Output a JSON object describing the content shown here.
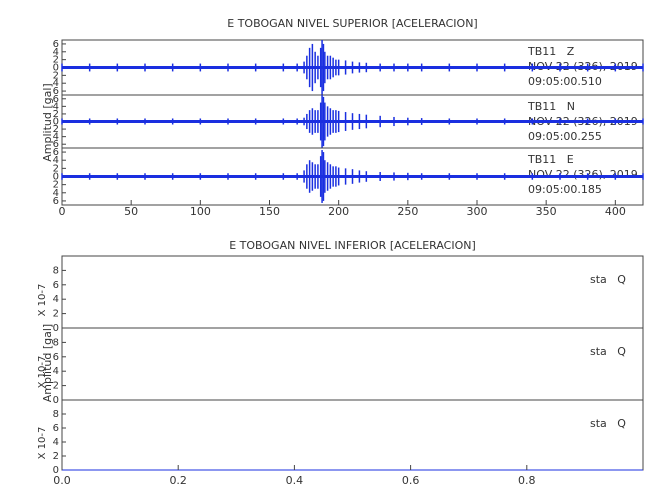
{
  "chart_data": [
    {
      "type": "line",
      "title": "E TOBOGAN NIVEL SUPERIOR [ACELERACION]",
      "ylabel": "Amplitud [gal]",
      "xlim": [
        0,
        420
      ],
      "xticks": [
        0,
        50,
        100,
        150,
        200,
        250,
        300,
        350,
        400
      ],
      "ylim": [
        -7,
        7
      ],
      "yticks": [
        {
          "value": -6,
          "label": "6"
        },
        {
          "value": -4,
          "label": "4"
        },
        {
          "value": -2,
          "label": "2"
        },
        0,
        2,
        4,
        6
      ],
      "x": [
        0,
        20,
        40,
        60,
        80,
        100,
        120,
        140,
        160,
        170,
        175,
        177,
        179,
        181,
        183,
        185,
        187,
        188,
        189,
        190,
        192,
        194,
        196,
        198,
        200,
        205,
        210,
        215,
        220,
        230,
        240,
        250,
        260,
        280,
        300,
        320,
        340,
        360,
        380,
        400,
        420
      ],
      "series": [
        {
          "name": "TB11   Z",
          "date": "NOV 22 (326), 2019",
          "time": "09:05:00.510",
          "color": "#1a2fe0",
          "values": [
            1,
            1,
            1,
            1,
            1,
            1,
            1,
            1,
            1,
            1,
            1.5,
            3,
            5,
            6,
            4,
            3,
            5,
            7,
            6,
            4,
            3,
            3,
            2.5,
            2,
            2,
            1.8,
            1.5,
            1.3,
            1.2,
            1,
            1,
            1,
            1,
            1,
            1,
            1,
            1,
            1,
            1,
            1,
            1
          ]
        },
        {
          "name": "TB11   N",
          "date": "NOV 22 (326), 2019",
          "time": "09:05:00.255",
          "color": "#1a2fe0",
          "values": [
            0.8,
            0.8,
            0.8,
            0.8,
            0.8,
            0.8,
            0.8,
            0.8,
            0.8,
            0.8,
            1,
            2,
            3,
            3.5,
            3,
            3,
            5,
            7,
            6.5,
            5,
            4,
            3.5,
            3,
            3,
            2.8,
            2.5,
            2.2,
            2,
            1.8,
            1.5,
            1.2,
            1,
            0.9,
            0.8,
            0.8,
            0.8,
            0.8,
            0.8,
            0.8,
            0.8,
            0.8
          ]
        },
        {
          "name": "TB11   E",
          "date": "NOV 22 (326), 2019",
          "time": "09:05:00.185",
          "color": "#1a2fe0",
          "values": [
            0.8,
            0.8,
            0.8,
            0.8,
            0.8,
            0.8,
            0.8,
            0.8,
            0.8,
            0.8,
            1.5,
            3,
            4,
            3.5,
            3,
            3,
            5,
            6.5,
            6,
            4,
            3.5,
            3,
            2.5,
            2.5,
            2.2,
            2,
            1.8,
            1.5,
            1.3,
            1.1,
            1,
            0.9,
            0.8,
            0.8,
            0.8,
            0.8,
            0.8,
            0.8,
            0.8,
            0.8,
            0.8
          ]
        }
      ]
    },
    {
      "type": "flat",
      "title": "E TOBOGAN NIVEL INFERIOR [ACELERACION]",
      "ylabel": "Amplitud [gal]",
      "panel_label": "X 10-7",
      "xlim": [
        0,
        1
      ],
      "xticks": [
        {
          "value": 0,
          "label": "0.0"
        },
        0.2,
        0.4,
        0.6,
        0.8
      ],
      "ylim": [
        0,
        10
      ],
      "yticks": [
        0,
        2,
        4,
        6,
        8
      ],
      "x": [
        0,
        1
      ],
      "series": [
        {
          "name": "sta   Q",
          "color": "#1a2fe0",
          "values": [
            0,
            0
          ]
        },
        {
          "name": "sta   Q",
          "color": "#1a2fe0",
          "values": [
            0,
            0
          ]
        },
        {
          "name": "sta   Q",
          "color": "#1a2fe0",
          "values": [
            0,
            0
          ]
        }
      ]
    }
  ]
}
